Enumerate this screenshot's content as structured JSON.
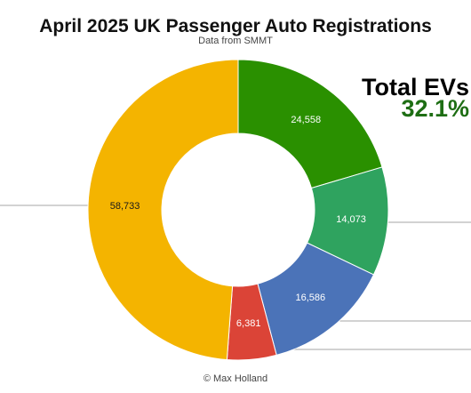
{
  "chart_data": {
    "type": "pie",
    "title": "April 2025 UK Passenger Auto Registrations",
    "subtitle": "Data from SMMT",
    "credit": "© Max Holland",
    "slices": [
      {
        "value": 24558,
        "label": "24,558",
        "color": "#2a9000",
        "label_color": "#ffffff"
      },
      {
        "value": 14073,
        "label": "14,073",
        "color": "#2fa35f",
        "label_color": "#ffffff"
      },
      {
        "value": 16586,
        "label": "16,586",
        "color": "#4b73b8",
        "label_color": "#ffffff"
      },
      {
        "value": 6381,
        "label": "6,381",
        "color": "#db4437",
        "label_color": "#ffffff"
      },
      {
        "value": 58733,
        "label": "58,733",
        "color": "#f4b400",
        "label_color": "#1a1a1a"
      }
    ],
    "annotation": {
      "title": "Total EVs",
      "value": "32.1%",
      "value_color": "#1e6e14"
    }
  }
}
